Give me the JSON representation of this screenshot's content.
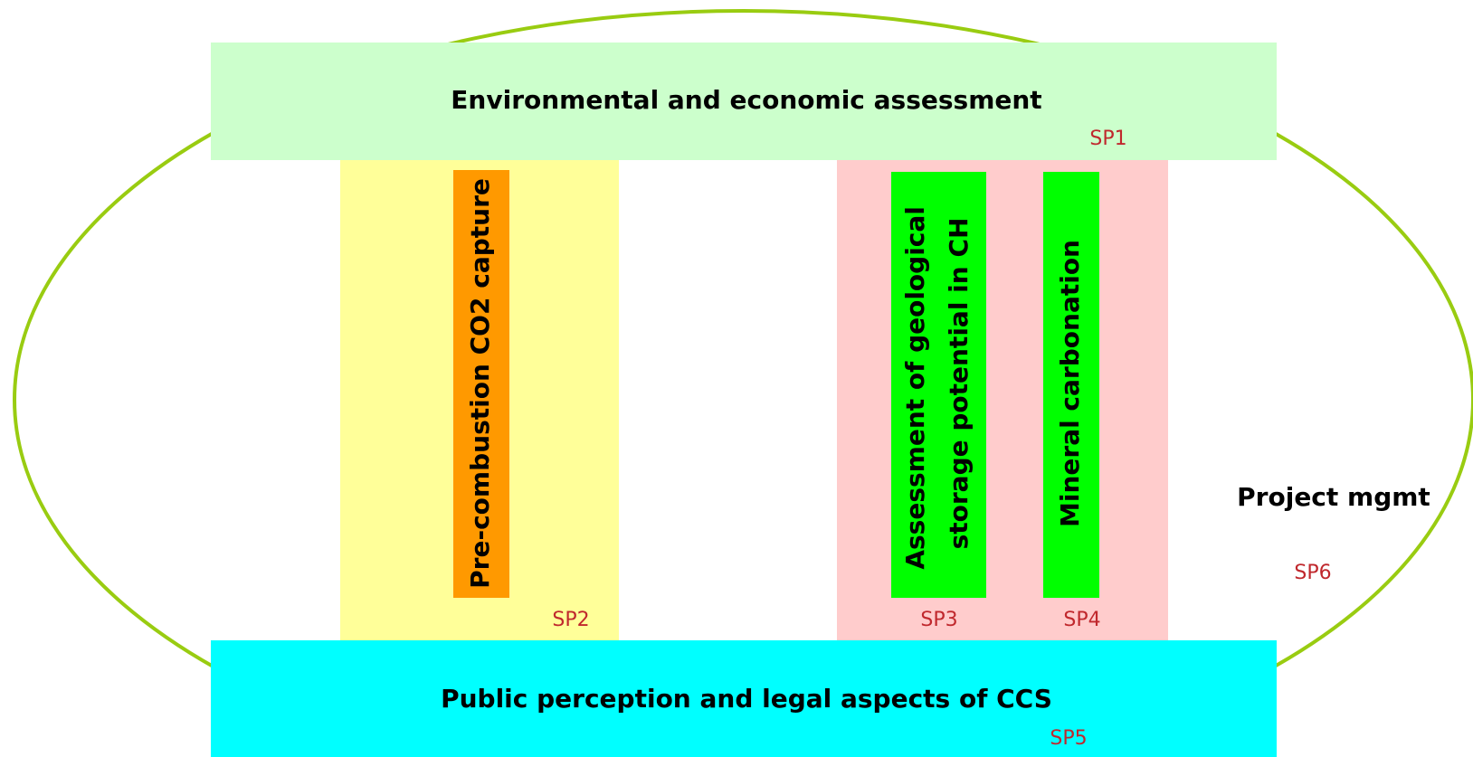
{
  "top": {
    "label": "Environmental and economic assessment",
    "code": "SP1"
  },
  "pre_combustion": {
    "label": "Pre-combustion CO2 capture",
    "code": "SP2"
  },
  "geological": {
    "lines": [
      "Assessment of geological",
      "storage potential in CH"
    ],
    "code": "SP3"
  },
  "mineral": {
    "label": "Mineral carbonation",
    "code": "SP4"
  },
  "bottom": {
    "label": "Public perception and legal aspects of CCS",
    "code": "SP5"
  },
  "management": {
    "label": "Project mgmt",
    "code": "SP6"
  }
}
